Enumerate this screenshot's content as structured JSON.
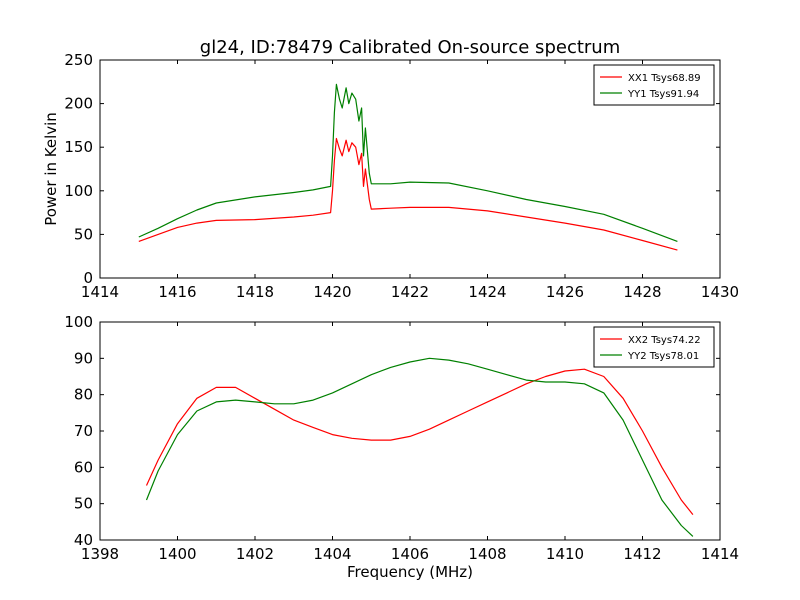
{
  "figure": {
    "title": "gl24, ID:78479 Calibrated On-source spectrum",
    "background": "#ffffff"
  },
  "chart_data": [
    {
      "type": "line",
      "title": "gl24, ID:78479 Calibrated On-source spectrum",
      "xlabel": "",
      "ylabel": "Power in Kelvin",
      "xlim": [
        1414,
        1430
      ],
      "ylim": [
        0,
        250
      ],
      "xticks": [
        1414,
        1416,
        1418,
        1420,
        1422,
        1424,
        1426,
        1428,
        1430
      ],
      "yticks": [
        0,
        50,
        100,
        150,
        200,
        250
      ],
      "legend_position": "top-right",
      "grid": false,
      "series": [
        {
          "name": "XX1 Tsys68.89",
          "color": "#ff0000",
          "x": [
            1415.0,
            1415.5,
            1416.0,
            1416.5,
            1417.0,
            1418.0,
            1419.0,
            1419.5,
            1419.95,
            1420.0,
            1420.05,
            1420.1,
            1420.18,
            1420.25,
            1420.35,
            1420.42,
            1420.5,
            1420.6,
            1420.68,
            1420.75,
            1420.8,
            1420.85,
            1420.95,
            1421.0,
            1421.5,
            1422.0,
            1423.0,
            1424.0,
            1425.0,
            1426.0,
            1427.0,
            1428.0,
            1428.9
          ],
          "y": [
            42,
            50,
            58,
            63,
            66,
            67,
            70,
            72,
            75,
            100,
            135,
            160,
            148,
            140,
            158,
            145,
            155,
            150,
            130,
            143,
            105,
            125,
            90,
            79,
            80,
            81,
            81,
            77,
            70,
            63,
            55,
            43,
            32
          ]
        },
        {
          "name": "YY1 Tsys91.94",
          "color": "#008000",
          "x": [
            1415.0,
            1415.5,
            1416.0,
            1416.5,
            1417.0,
            1418.0,
            1419.0,
            1419.5,
            1419.95,
            1420.0,
            1420.05,
            1420.1,
            1420.18,
            1420.25,
            1420.35,
            1420.42,
            1420.5,
            1420.6,
            1420.68,
            1420.75,
            1420.8,
            1420.85,
            1420.95,
            1421.0,
            1421.5,
            1422.0,
            1423.0,
            1424.0,
            1425.0,
            1426.0,
            1427.0,
            1428.0,
            1428.9
          ],
          "y": [
            47,
            57,
            68,
            78,
            86,
            93,
            98,
            101,
            105,
            140,
            190,
            222,
            205,
            195,
            218,
            200,
            212,
            205,
            180,
            195,
            140,
            172,
            120,
            108,
            108,
            110,
            109,
            100,
            90,
            82,
            73,
            57,
            42
          ]
        }
      ]
    },
    {
      "type": "line",
      "title": "",
      "xlabel": "Frequency (MHz)",
      "ylabel": "",
      "xlim": [
        1398,
        1414
      ],
      "ylim": [
        40,
        100
      ],
      "xticks": [
        1398,
        1400,
        1402,
        1404,
        1406,
        1408,
        1410,
        1412,
        1414
      ],
      "yticks": [
        40,
        50,
        60,
        70,
        80,
        90,
        100
      ],
      "legend_position": "top-right",
      "grid": false,
      "series": [
        {
          "name": "XX2 Tsys74.22",
          "color": "#ff0000",
          "x": [
            1399.2,
            1399.5,
            1400.0,
            1400.5,
            1401.0,
            1401.5,
            1402.0,
            1402.5,
            1403.0,
            1403.5,
            1404.0,
            1404.5,
            1405.0,
            1405.5,
            1406.0,
            1406.5,
            1407.0,
            1407.5,
            1408.0,
            1408.5,
            1409.0,
            1409.5,
            1410.0,
            1410.5,
            1411.0,
            1411.5,
            1412.0,
            1412.5,
            1413.0,
            1413.3
          ],
          "y": [
            55,
            62,
            72,
            79,
            82,
            82,
            79,
            76,
            73,
            71,
            69,
            68,
            67.5,
            67.5,
            68.5,
            70.5,
            73,
            75.5,
            78,
            80.5,
            83,
            85,
            86.5,
            87,
            85,
            79,
            70,
            60,
            51,
            47
          ]
        },
        {
          "name": "YY2 Tsys78.01",
          "color": "#008000",
          "x": [
            1399.2,
            1399.5,
            1400.0,
            1400.5,
            1401.0,
            1401.5,
            1402.0,
            1402.5,
            1403.0,
            1403.5,
            1404.0,
            1404.5,
            1405.0,
            1405.5,
            1406.0,
            1406.5,
            1407.0,
            1407.5,
            1408.0,
            1408.5,
            1409.0,
            1409.5,
            1410.0,
            1410.5,
            1411.0,
            1411.5,
            1412.0,
            1412.5,
            1413.0,
            1413.3
          ],
          "y": [
            51,
            59,
            69,
            75.5,
            78,
            78.5,
            78,
            77.5,
            77.5,
            78.5,
            80.5,
            83,
            85.5,
            87.5,
            89,
            90,
            89.5,
            88.5,
            87,
            85.5,
            84,
            83.5,
            83.5,
            83,
            80.5,
            73,
            62,
            51,
            44,
            41
          ]
        }
      ]
    }
  ]
}
